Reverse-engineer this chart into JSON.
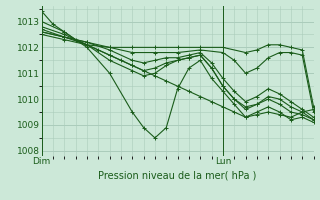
{
  "xlabel": "Pression niveau de la mer( hPa )",
  "bg_color": "#cce8d8",
  "grid_color": "#aaccbb",
  "line_color": "#1a5c1a",
  "ylim": [
    1007.8,
    1013.6
  ],
  "xlim": [
    0,
    48
  ],
  "dim_x": 0,
  "lun_x": 32,
  "yticks": [
    1008,
    1009,
    1010,
    1011,
    1012,
    1013
  ],
  "series": [
    [
      0,
      1013.4,
      2,
      1012.9,
      4,
      1012.6,
      6,
      1012.3,
      8,
      1012.1,
      10,
      1011.9,
      12,
      1011.7,
      14,
      1011.5,
      16,
      1011.3,
      18,
      1011.1,
      20,
      1010.9,
      22,
      1010.7,
      24,
      1010.5,
      26,
      1010.3,
      28,
      1010.1,
      30,
      1009.9,
      32,
      1009.7,
      34,
      1009.5,
      36,
      1009.3,
      38,
      1009.4,
      40,
      1009.5,
      42,
      1009.4,
      44,
      1009.3,
      46,
      1009.5,
      48,
      1009.6
    ],
    [
      0,
      1013.0,
      4,
      1012.6,
      8,
      1012.0,
      12,
      1011.0,
      16,
      1009.5,
      18,
      1008.9,
      20,
      1008.5,
      22,
      1008.9,
      24,
      1010.4,
      26,
      1011.2,
      28,
      1011.5,
      30,
      1010.8,
      32,
      1010.3,
      34,
      1009.8,
      36,
      1009.3,
      38,
      1009.5,
      40,
      1009.7,
      42,
      1009.5,
      44,
      1009.2,
      46,
      1009.3,
      48,
      1009.1
    ],
    [
      0,
      1012.8,
      4,
      1012.5,
      8,
      1012.1,
      12,
      1011.5,
      16,
      1011.1,
      18,
      1010.9,
      20,
      1011.0,
      22,
      1011.3,
      24,
      1011.5,
      26,
      1011.6,
      28,
      1011.7,
      30,
      1011.2,
      32,
      1010.5,
      34,
      1010.0,
      36,
      1009.6,
      38,
      1009.8,
      40,
      1010.1,
      42,
      1010.0,
      44,
      1009.7,
      46,
      1009.5,
      48,
      1009.2
    ],
    [
      0,
      1012.7,
      4,
      1012.4,
      8,
      1012.1,
      12,
      1011.7,
      16,
      1011.3,
      18,
      1011.1,
      20,
      1011.2,
      22,
      1011.4,
      24,
      1011.5,
      26,
      1011.6,
      28,
      1011.7,
      30,
      1011.2,
      32,
      1010.5,
      34,
      1010.0,
      36,
      1009.7,
      38,
      1009.8,
      40,
      1010.0,
      42,
      1009.8,
      44,
      1009.5,
      46,
      1009.4,
      48,
      1009.2
    ],
    [
      0,
      1012.6,
      4,
      1012.4,
      8,
      1012.2,
      12,
      1011.9,
      16,
      1011.5,
      18,
      1011.4,
      20,
      1011.5,
      22,
      1011.6,
      24,
      1011.6,
      26,
      1011.7,
      28,
      1011.8,
      30,
      1011.4,
      32,
      1010.8,
      34,
      1010.3,
      36,
      1009.9,
      38,
      1010.1,
      40,
      1010.4,
      42,
      1010.2,
      44,
      1009.9,
      46,
      1009.6,
      48,
      1009.3
    ],
    [
      0,
      1012.6,
      4,
      1012.4,
      8,
      1012.2,
      12,
      1012.0,
      16,
      1011.8,
      20,
      1011.8,
      24,
      1011.8,
      28,
      1011.9,
      32,
      1011.8,
      34,
      1011.5,
      36,
      1011.0,
      38,
      1011.2,
      40,
      1011.6,
      42,
      1011.8,
      44,
      1011.8,
      46,
      1011.7,
      48,
      1009.5
    ],
    [
      0,
      1012.5,
      4,
      1012.3,
      8,
      1012.1,
      12,
      1012.0,
      16,
      1012.0,
      20,
      1012.0,
      24,
      1012.0,
      28,
      1012.0,
      32,
      1012.0,
      36,
      1011.8,
      38,
      1011.9,
      40,
      1012.1,
      42,
      1012.1,
      44,
      1012.0,
      46,
      1011.9,
      48,
      1009.7
    ]
  ]
}
